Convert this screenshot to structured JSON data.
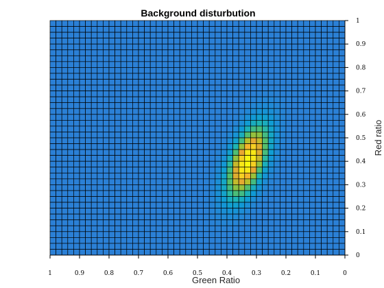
{
  "chart_data": {
    "type": "heatmap",
    "title": "Background disturbution",
    "xlabel": "Green Ratio",
    "ylabel": "Red ratio",
    "xlim": [
      1,
      0
    ],
    "ylim": [
      0,
      1
    ],
    "x_reversed": true,
    "x_ticks": [
      "1",
      "0.9",
      "0.8",
      "0.7",
      "0.6",
      "0.5",
      "0.4",
      "0.3",
      "0.2",
      "0.1",
      "0"
    ],
    "y_ticks": [
      "0",
      "0.1",
      "0.2",
      "0.3",
      "0.4",
      "0.5",
      "0.6",
      "0.7",
      "0.8",
      "0.9",
      "1"
    ],
    "y_axis_location": "right",
    "grid_cells": [
      50,
      40
    ],
    "background_level": 0.0,
    "peak": {
      "green_ratio": 0.33,
      "red_ratio": 0.4,
      "spread_green": 0.045,
      "spread_red": 0.1,
      "correlation": -0.55
    },
    "colormap": [
      "#2b80d6",
      "#0f9bd6",
      "#20b7b0",
      "#5fc060",
      "#b5c12a",
      "#f3a333",
      "#f7e01c",
      "#f9fb0e"
    ],
    "cell_edge_color": "#000000"
  }
}
